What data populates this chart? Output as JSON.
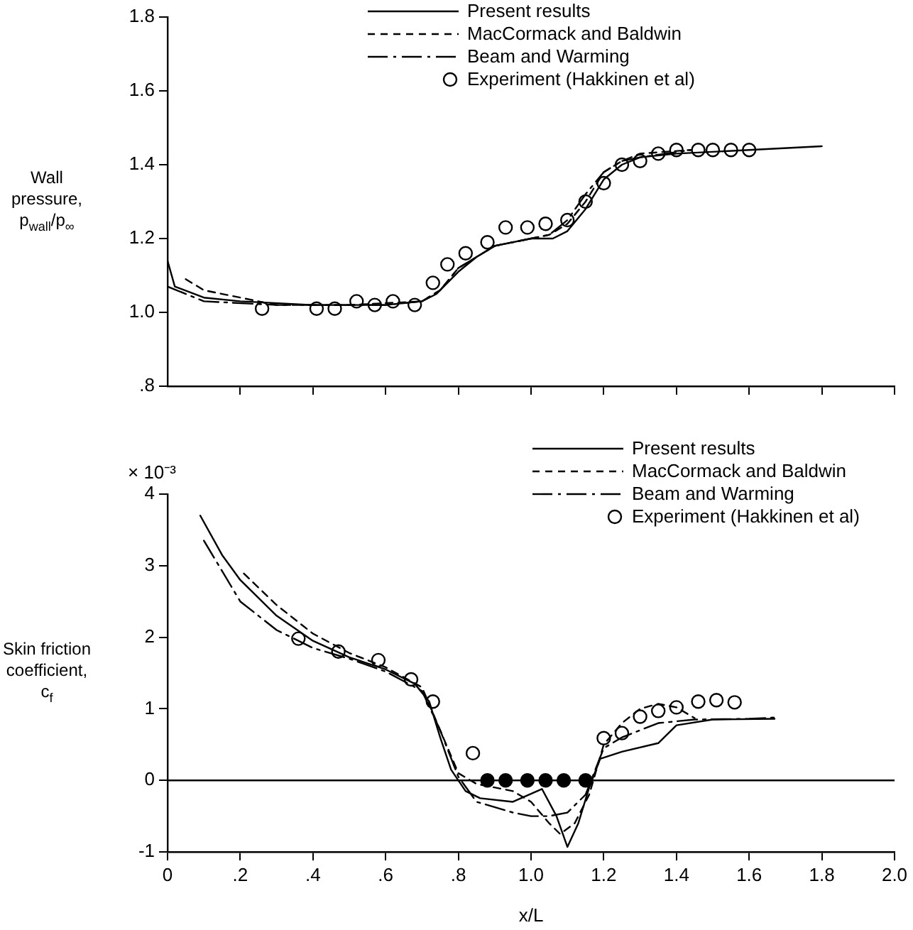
{
  "chart_data": [
    {
      "type": "line",
      "ylabel": "Wall pressure, p$_{wall}$/p$_{∞}$",
      "xlim": [
        0,
        2
      ],
      "xticks": [
        {
          "value": 0.2,
          "label": null
        },
        {
          "value": 0.4,
          "label": null
        },
        {
          "value": 0.6,
          "label": null
        },
        {
          "value": 0.8,
          "label": null
        },
        {
          "value": 1,
          "label": null
        },
        {
          "value": 1.2,
          "label": null
        },
        {
          "value": 1.4,
          "label": null
        },
        {
          "value": 1.6,
          "label": null
        },
        {
          "value": 1.8,
          "label": null
        },
        {
          "value": 2,
          "label": null
        }
      ],
      "ylim": [
        0.8,
        1.8
      ],
      "yticks": [
        {
          "value": 0.8,
          "label": ".8"
        },
        {
          "value": 1,
          "label": "1.0"
        },
        1.2,
        1.4,
        1.6,
        1.8
      ],
      "tick_labels": "y",
      "grid": false,
      "legend": "top",
      "series": [
        {
          "name": "Present results",
          "color": "#000000",
          "line_style": "solid",
          "marker": "none",
          "x": [
            0,
            0.02,
            0.1,
            0.2,
            0.4,
            0.6,
            0.7,
            0.74,
            0.8,
            0.85,
            0.9,
            1.0,
            1.06,
            1.1,
            1.15,
            1.2,
            1.25,
            1.3,
            1.4,
            1.6,
            1.8
          ],
          "values": [
            1.14,
            1.07,
            1.04,
            1.03,
            1.02,
            1.02,
            1.03,
            1.05,
            1.11,
            1.15,
            1.18,
            1.2,
            1.2,
            1.22,
            1.28,
            1.36,
            1.4,
            1.42,
            1.43,
            1.44,
            1.45
          ]
        },
        {
          "name": "MacCormack and Baldwin",
          "color": "#000000",
          "line_style": "dashed",
          "marker": "none",
          "x": [
            0.05,
            0.1,
            0.2,
            0.3,
            0.5,
            0.7,
            0.75,
            0.8,
            0.9,
            1.0,
            1.05,
            1.1,
            1.15,
            1.2,
            1.25,
            1.3,
            1.44
          ],
          "values": [
            1.09,
            1.06,
            1.04,
            1.02,
            1.02,
            1.03,
            1.06,
            1.12,
            1.18,
            1.2,
            1.21,
            1.24,
            1.3,
            1.38,
            1.41,
            1.43,
            1.44
          ]
        },
        {
          "name": "Beam and Warming",
          "color": "#000000",
          "line_style": "dashdot",
          "marker": "none",
          "x": [
            0,
            0.1,
            0.3,
            0.6,
            0.7,
            0.75,
            0.8,
            0.9,
            1.0,
            1.05,
            1.1,
            1.15,
            1.2,
            1.25,
            1.3,
            1.44
          ],
          "values": [
            1.07,
            1.03,
            1.02,
            1.02,
            1.03,
            1.06,
            1.12,
            1.18,
            1.2,
            1.21,
            1.25,
            1.32,
            1.38,
            1.41,
            1.42,
            1.44
          ]
        },
        {
          "name": "Experiment (Hakkinen et al)",
          "type": "scatter",
          "color": "#ffffff",
          "marker": "circle",
          "x": [
            0.26,
            0.41,
            0.46,
            0.52,
            0.57,
            0.62,
            0.68,
            0.73,
            0.77,
            0.82,
            0.88,
            0.93,
            0.99,
            1.04,
            1.1,
            1.15,
            1.2,
            1.25,
            1.3,
            1.35,
            1.4,
            1.46,
            1.5,
            1.55,
            1.6
          ],
          "values": [
            1.01,
            1.01,
            1.01,
            1.03,
            1.02,
            1.03,
            1.02,
            1.08,
            1.13,
            1.16,
            1.19,
            1.23,
            1.23,
            1.24,
            1.25,
            1.3,
            1.35,
            1.4,
            1.41,
            1.43,
            1.44,
            1.44,
            1.44,
            1.44,
            1.44
          ]
        }
      ]
    },
    {
      "type": "line",
      "ylabel": "Skin friction coefficient, c$_{f}$",
      "xlabel": "x/L",
      "annotations": [
        "× 10⁻³"
      ],
      "xlim": [
        0,
        2
      ],
      "xticks": [
        0,
        {
          "value": 0.2,
          "label": ".2"
        },
        {
          "value": 0.4,
          "label": ".4"
        },
        {
          "value": 0.6,
          "label": ".6"
        },
        {
          "value": 0.8,
          "label": ".8"
        },
        {
          "value": 1,
          "label": "1.0"
        },
        1.2,
        1.4,
        1.6,
        1.8,
        {
          "value": 2,
          "label": "2.0"
        }
      ],
      "ylim": [
        -1,
        4
      ],
      "yticks": [
        -1,
        0,
        1,
        2,
        3,
        4
      ],
      "grid": false,
      "legend": "top right",
      "ref_lines": [
        {
          "axis": "y",
          "value": 0,
          "color": "#000000"
        }
      ],
      "series": [
        {
          "name": "Present results",
          "color": "#000000",
          "line_style": "solid",
          "marker": "none",
          "x": [
            0.09,
            0.15,
            0.2,
            0.3,
            0.4,
            0.5,
            0.6,
            0.68,
            0.72,
            0.75,
            0.78,
            0.82,
            0.86,
            0.95,
            1.03,
            1.07,
            1.1,
            1.13,
            1.16,
            1.19,
            1.25,
            1.35,
            1.4,
            1.5,
            1.67
          ],
          "values": [
            3.7,
            3.15,
            2.8,
            2.3,
            1.95,
            1.72,
            1.55,
            1.35,
            1.1,
            0.6,
            0.15,
            -0.15,
            -0.25,
            -0.3,
            -0.12,
            -0.5,
            -0.93,
            -0.6,
            -0.1,
            0.3,
            0.4,
            0.52,
            0.77,
            0.85,
            0.86
          ]
        },
        {
          "name": "MacCormack and Baldwin",
          "color": "#000000",
          "line_style": "dashed",
          "marker": "none",
          "x": [
            0.21,
            0.3,
            0.4,
            0.5,
            0.6,
            0.7,
            0.75,
            0.8,
            0.85,
            0.95,
            1.0,
            1.05,
            1.08,
            1.12,
            1.16,
            1.2,
            1.25,
            1.3,
            1.35,
            1.4,
            1.45
          ],
          "values": [
            2.89,
            2.45,
            2.05,
            1.78,
            1.58,
            1.3,
            0.7,
            0.1,
            -0.05,
            -0.15,
            -0.3,
            -0.6,
            -0.75,
            -0.6,
            -0.2,
            0.5,
            0.8,
            1.0,
            1.07,
            1.02,
            0.87
          ]
        },
        {
          "name": "Beam and Warming",
          "color": "#000000",
          "line_style": "dashdot",
          "marker": "none",
          "x": [
            0.1,
            0.2,
            0.3,
            0.4,
            0.5,
            0.6,
            0.7,
            0.75,
            0.8,
            0.85,
            0.95,
            1.0,
            1.05,
            1.1,
            1.15,
            1.2,
            1.25,
            1.3,
            1.35,
            1.45,
            1.6,
            1.68
          ],
          "values": [
            3.35,
            2.5,
            2.1,
            1.85,
            1.7,
            1.52,
            1.25,
            0.7,
            0.05,
            -0.3,
            -0.45,
            -0.5,
            -0.5,
            -0.45,
            -0.2,
            0.45,
            0.6,
            0.7,
            0.8,
            0.85,
            0.86,
            0.88
          ]
        },
        {
          "name": "Experiment (Hakkinen et al)",
          "type": "scatter",
          "color": "#ffffff",
          "marker": "circle",
          "x": [
            0.36,
            0.47,
            0.58,
            0.67,
            0.73,
            0.84,
            1.2,
            1.25,
            1.3,
            1.35,
            1.4,
            1.46,
            1.51,
            1.56
          ],
          "values": [
            1.98,
            1.8,
            1.68,
            1.41,
            1.1,
            0.38,
            0.59,
            0.66,
            0.89,
            0.97,
            1.02,
            1.1,
            1.12,
            1.09
          ]
        },
        {
          "type": "scatter",
          "color": "#000000",
          "marker": "circle",
          "x": [
            0.88,
            0.93,
            0.99,
            1.04,
            1.09,
            1.15
          ],
          "values": [
            0,
            0,
            0,
            0,
            0,
            0
          ]
        }
      ]
    }
  ]
}
